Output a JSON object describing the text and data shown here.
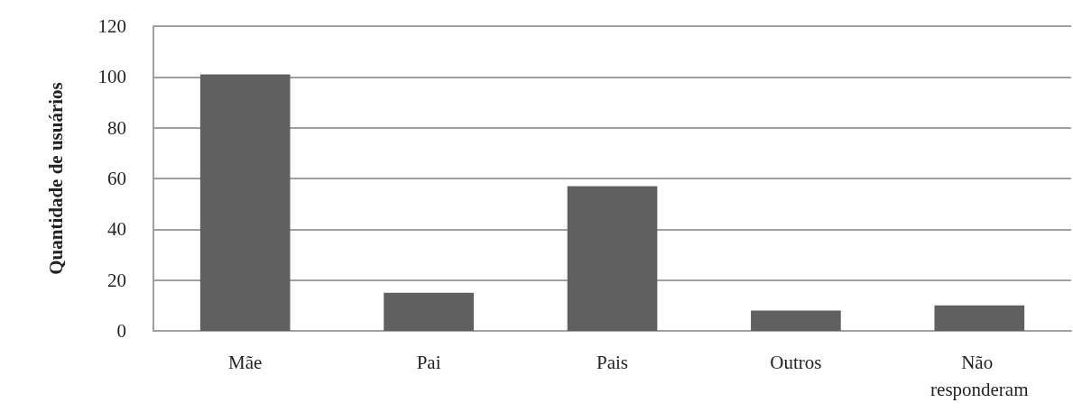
{
  "chart_data": {
    "type": "bar",
    "ylabel": "Quantidade de usuários",
    "categories": [
      "Mãe",
      "Pai",
      "Pais",
      "Outros",
      "Não responderam"
    ],
    "values": [
      101,
      15,
      57,
      8,
      10
    ],
    "color": "#606060",
    "ylim": [
      0,
      120
    ],
    "yticks": [
      0,
      20,
      40,
      60,
      80,
      100,
      120
    ],
    "grid": "y"
  }
}
